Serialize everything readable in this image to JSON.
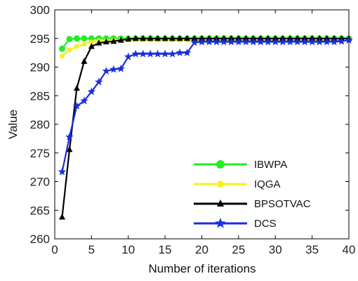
{
  "chart_data": {
    "type": "line",
    "title": "",
    "xlabel": "Number of iterations",
    "ylabel": "Value",
    "xlim": [
      0,
      40
    ],
    "ylim": [
      260,
      300
    ],
    "xticks": [
      0,
      5,
      10,
      15,
      20,
      25,
      30,
      35,
      40
    ],
    "yticks": [
      260,
      265,
      270,
      275,
      280,
      285,
      290,
      295,
      300
    ],
    "grid": false,
    "legend_position": "bottom-right",
    "x": [
      1,
      2,
      3,
      4,
      5,
      6,
      7,
      8,
      9,
      10,
      11,
      12,
      13,
      14,
      15,
      16,
      17,
      18,
      19,
      20,
      21,
      22,
      23,
      24,
      25,
      26,
      27,
      28,
      29,
      30,
      31,
      32,
      33,
      34,
      35,
      36,
      37,
      38,
      39,
      40
    ],
    "series": [
      {
        "name": "IBWPA",
        "color": "#22ee22",
        "marker": "circle",
        "values": [
          293.2,
          294.9,
          295.0,
          295.0,
          295.0,
          295.0,
          295.0,
          295.0,
          295.0,
          295.0,
          295.0,
          295.0,
          295.0,
          295.0,
          295.0,
          295.0,
          295.0,
          295.0,
          295.0,
          295.0,
          295.0,
          295.0,
          295.0,
          295.0,
          295.0,
          295.0,
          295.0,
          295.0,
          295.0,
          295.0,
          295.0,
          295.0,
          295.0,
          295.0,
          295.0,
          295.0,
          295.0,
          295.0,
          295.0,
          295.0
        ]
      },
      {
        "name": "IQGA",
        "color": "#f2f21a",
        "marker": "square",
        "values": [
          291.9,
          293.0,
          293.6,
          294.0,
          294.4,
          294.6,
          294.6,
          294.7,
          294.7,
          294.7,
          294.7,
          294.7,
          294.7,
          294.7,
          294.7,
          294.7,
          294.7,
          294.7,
          294.7,
          294.7,
          294.7,
          294.7,
          294.7,
          294.7,
          294.7,
          294.7,
          294.7,
          294.7,
          294.7,
          294.7,
          294.7,
          294.7,
          294.7,
          294.7,
          294.7,
          294.7,
          294.7,
          294.7,
          294.7,
          294.8
        ]
      },
      {
        "name": "BPSOTVAC",
        "color": "#000000",
        "marker": "triangle",
        "values": [
          263.8,
          275.6,
          286.3,
          291.0,
          293.6,
          294.2,
          294.4,
          294.5,
          294.7,
          294.9,
          295.0,
          295.0,
          295.0,
          295.0,
          295.0,
          295.0,
          295.0,
          295.0,
          295.0,
          295.0,
          295.0,
          295.0,
          295.0,
          295.0,
          295.0,
          295.0,
          295.0,
          295.0,
          295.0,
          295.0,
          295.0,
          295.0,
          295.0,
          295.0,
          295.0,
          295.0,
          295.0,
          295.0,
          295.0,
          295.0
        ]
      },
      {
        "name": "DCS",
        "color": "#1a2ee0",
        "marker": "star",
        "values": [
          271.7,
          277.8,
          283.2,
          284.1,
          285.7,
          287.4,
          289.3,
          289.6,
          289.7,
          291.8,
          292.3,
          292.3,
          292.3,
          292.3,
          292.3,
          292.3,
          292.5,
          292.5,
          294.3,
          294.4,
          294.4,
          294.4,
          294.4,
          294.4,
          294.4,
          294.4,
          294.4,
          294.4,
          294.4,
          294.4,
          294.4,
          294.4,
          294.4,
          294.4,
          294.4,
          294.4,
          294.4,
          294.4,
          294.5,
          294.7
        ]
      }
    ]
  }
}
